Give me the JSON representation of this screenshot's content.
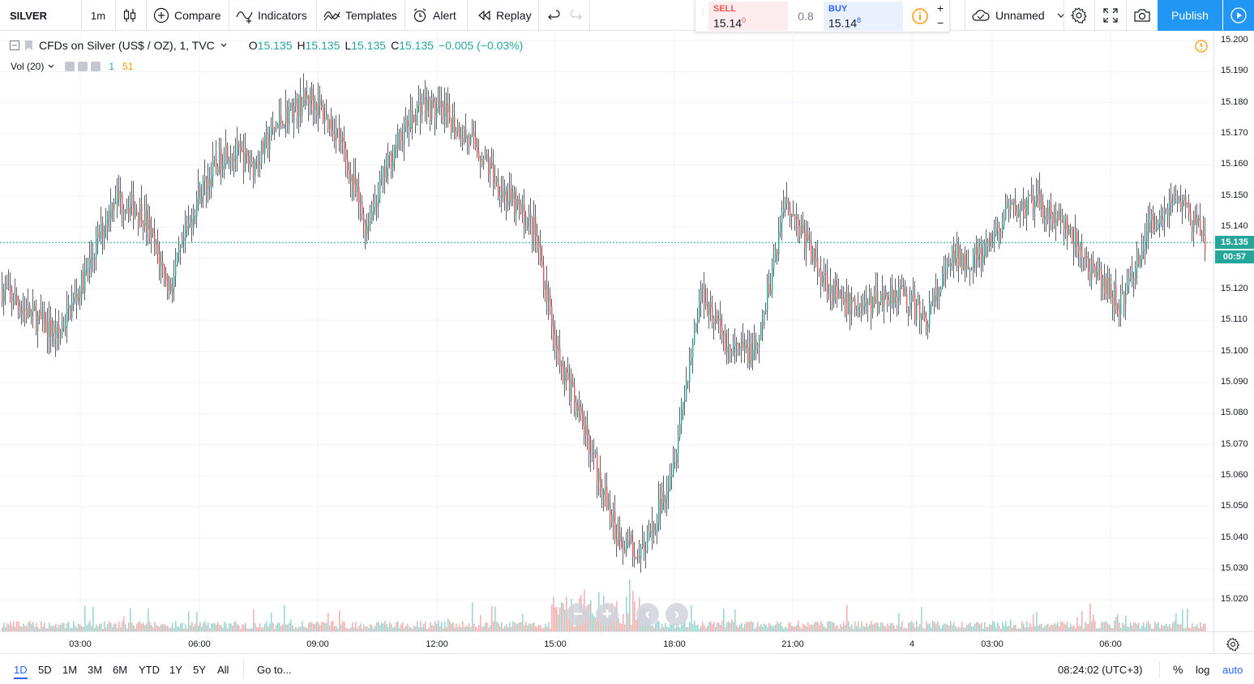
{
  "toolbar": {
    "symbol": "SILVER",
    "interval": "1m",
    "compare_label": "Compare",
    "indicators_label": "Indicators",
    "templates_label": "Templates",
    "alert_label": "Alert",
    "replay_label": "Replay",
    "layout_name": "Unnamed",
    "publish_label": "Publish"
  },
  "trade_panel": {
    "sell_label": "SELL",
    "sell_price": "15.14",
    "sell_super": "0",
    "spread": "0.8",
    "buy_label": "BUY",
    "buy_price": "15.14",
    "buy_super": "8",
    "plus": "+",
    "minus": "−"
  },
  "legend": {
    "title": "CFDs on Silver (US$ / OZ), 1, TVC",
    "o_key": "O",
    "o_val": "15.135",
    "h_key": "H",
    "h_val": "15.135",
    "l_key": "L",
    "l_val": "15.135",
    "c_key": "C",
    "c_val": "15.135",
    "change": "−0.005 (−0.03%)",
    "vol_label": "Vol (20)",
    "vol_val1": "1",
    "vol_val2": "51"
  },
  "price_scale": {
    "labels": [
      "15.200",
      "15.190",
      "15.180",
      "15.170",
      "15.160",
      "15.150",
      "15.140",
      "15.130",
      "15.120",
      "15.110",
      "15.100",
      "15.090",
      "15.080",
      "15.070",
      "15.060",
      "15.050",
      "15.040",
      "15.030",
      "15.020"
    ],
    "last_price": "15.135",
    "countdown": "00:57"
  },
  "time_axis": {
    "labels": [
      "03:00",
      "06:00",
      "09:00",
      "12:00",
      "15:00",
      "18:00",
      "21:00",
      "4",
      "03:00",
      "06:00"
    ]
  },
  "bottom_bar": {
    "ranges": [
      "1D",
      "5D",
      "1M",
      "3M",
      "6M",
      "YTD",
      "1Y",
      "5Y",
      "All"
    ],
    "goto_label": "Go to...",
    "clock": "08:24:02 (UTC+3)",
    "percent": "%",
    "log": "log",
    "auto": "auto"
  },
  "colors": {
    "up": "#26a69a",
    "down": "#ef5350",
    "accent": "#2196f3",
    "grid": "#f0f3fa"
  },
  "chart_data": {
    "type": "candlestick",
    "title": "CFDs on Silver (US$ / OZ), 1, TVC",
    "interval": "1m",
    "ylim": [
      15.014,
      15.204
    ],
    "x_ticks": [
      "03:00",
      "06:00",
      "09:00",
      "12:00",
      "15:00",
      "18:00",
      "21:00",
      "4",
      "03:00",
      "06:00"
    ],
    "last_price": 15.135,
    "price_path": [
      [
        "01:00",
        15.12
      ],
      [
        "02:00",
        15.112
      ],
      [
        "03:00",
        15.105
      ],
      [
        "04:00",
        15.125
      ],
      [
        "04:45",
        15.15
      ],
      [
        "05:15",
        15.145
      ],
      [
        "05:45",
        15.12
      ],
      [
        "06:30",
        15.15
      ],
      [
        "07:00",
        15.165
      ],
      [
        "08:00",
        15.16
      ],
      [
        "08:30",
        15.175
      ],
      [
        "09:00",
        15.182
      ],
      [
        "09:45",
        15.17
      ],
      [
        "10:15",
        15.14
      ],
      [
        "11:00",
        15.165
      ],
      [
        "11:45",
        15.18
      ],
      [
        "12:30",
        15.175
      ],
      [
        "13:30",
        15.165
      ],
      [
        "14:00",
        15.15
      ],
      [
        "14:45",
        15.14
      ],
      [
        "15:15",
        15.095
      ],
      [
        "15:45",
        15.07
      ],
      [
        "16:15",
        15.04
      ],
      [
        "16:45",
        15.035
      ],
      [
        "17:30",
        15.065
      ],
      [
        "18:00",
        15.12
      ],
      [
        "18:30",
        15.1
      ],
      [
        "19:00",
        15.1
      ],
      [
        "19:30",
        15.15
      ],
      [
        "20:00",
        15.13
      ],
      [
        "20:30",
        15.115
      ],
      [
        "21:00",
        15.115
      ],
      [
        "22:00",
        15.12
      ],
      [
        "23:00",
        15.11
      ],
      [
        "00:00",
        15.13
      ],
      [
        "01:00",
        15.13
      ],
      [
        "02:00",
        15.145
      ],
      [
        "03:00",
        15.148
      ],
      [
        "04:00",
        15.14
      ],
      [
        "05:00",
        15.125
      ],
      [
        "05:45",
        15.115
      ],
      [
        "06:30",
        15.14
      ],
      [
        "07:30",
        15.15
      ],
      [
        "08:24",
        15.135
      ]
    ]
  }
}
